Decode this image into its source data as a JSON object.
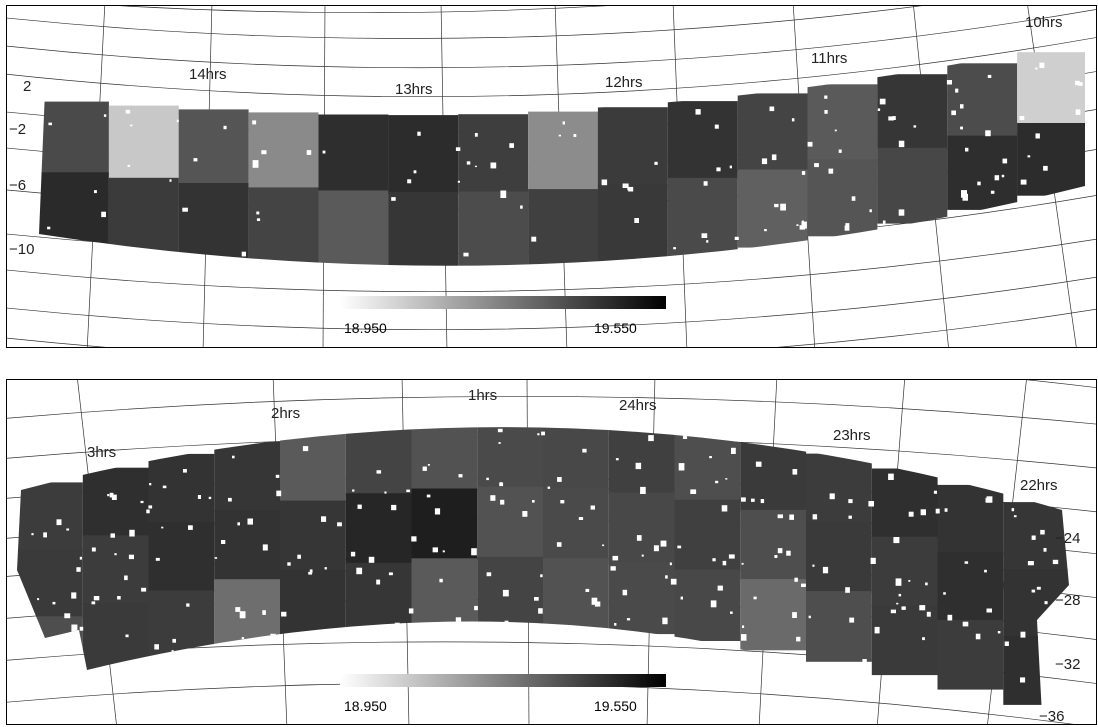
{
  "panels": [
    {
      "id": "top",
      "ra_labels": [
        "14hrs",
        "13hrs",
        "12hrs",
        "11hrs",
        "10hrs"
      ],
      "dec_labels": [
        "2",
        "−2",
        "−6",
        "−10"
      ],
      "colorbar": {
        "min_label": "18.950",
        "max_label": "19.550",
        "min_color": "#ffffff",
        "max_color": "#000000"
      }
    },
    {
      "id": "bottom",
      "ra_labels": [
        "3hrs",
        "2hrs",
        "1hrs",
        "24hrs",
        "23hrs",
        "22hrs"
      ],
      "dec_labels": [
        "−24",
        "−28",
        "−32",
        "−36"
      ],
      "colorbar": {
        "min_label": "18.950",
        "max_label": "19.550",
        "min_color": "#ffffff",
        "max_color": "#000000"
      }
    }
  ]
}
